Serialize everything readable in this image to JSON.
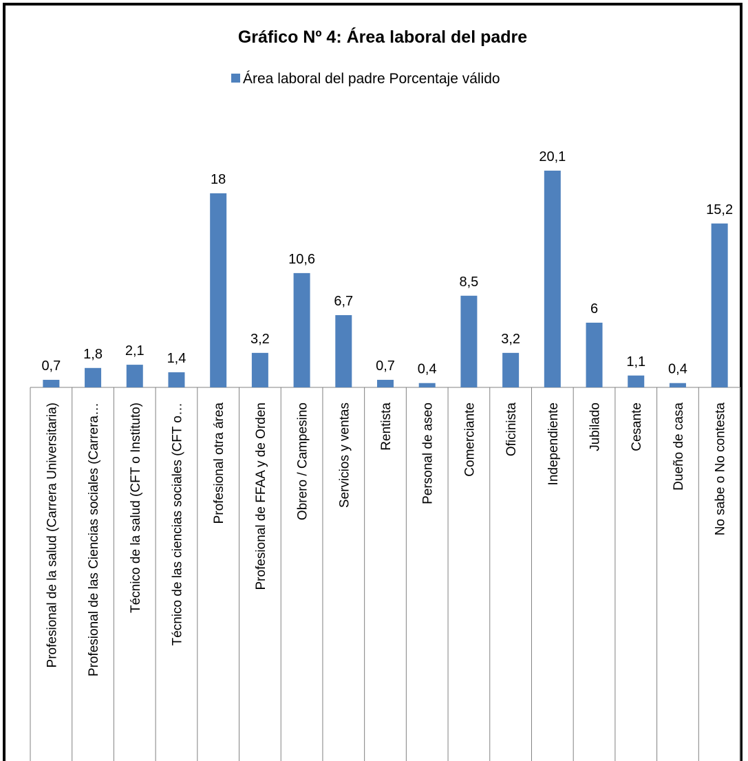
{
  "chart_data": {
    "type": "bar",
    "title": "Gráfico Nº 4: Área laboral del padre",
    "legend": {
      "position": "top",
      "entries": [
        "Área laboral del padre Porcentaje válido"
      ]
    },
    "xlabel": "",
    "ylabel": "",
    "ylim": [
      0,
      22
    ],
    "grid": false,
    "colors": {
      "bar": "#4f81bd"
    },
    "categories": [
      "Profesional de la salud (Carrera Universitaria)",
      "Profesional de las Ciencias sociales (Carrera…",
      "Técnico de la salud (CFT o Instituto)",
      "Técnico de las ciencias sociales (CFT o…",
      "Profesional otra área",
      "Profesional de FFAA y de Orden",
      "Obrero / Campesino",
      "Servicios y ventas",
      "Rentista",
      "Personal de aseo",
      "Comerciante",
      "Oficinista",
      "Independiente",
      "Jubilado",
      "Cesante",
      "Dueño de casa",
      "No sabe o No contesta"
    ],
    "values": [
      0.7,
      1.8,
      2.1,
      1.4,
      18,
      3.2,
      10.6,
      6.7,
      0.7,
      0.4,
      8.5,
      3.2,
      20.1,
      6,
      1.1,
      0.4,
      15.2
    ],
    "data_labels": [
      "0,7",
      "1,8",
      "2,1",
      "1,4",
      "18",
      "3,2",
      "10,6",
      "6,7",
      "0,7",
      "0,4",
      "8,5",
      "3,2",
      "20,1",
      "6",
      "1,1",
      "0,4",
      "15,2"
    ]
  }
}
